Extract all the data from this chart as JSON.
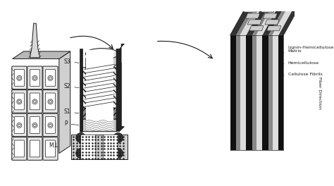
{
  "bg_color": "#f0f0f0",
  "title": "",
  "labels_middle": [
    "S3",
    "S2",
    "S1",
    "P",
    "M.L"
  ],
  "labels_right": [
    "Cellulose Fibrils",
    "Hemicellulose",
    "Lignin-Hemicellulose\nMatrix"
  ],
  "fiber_direction": "Fiber Direction",
  "fig_width": 4.74,
  "fig_height": 2.64,
  "dpi": 100
}
